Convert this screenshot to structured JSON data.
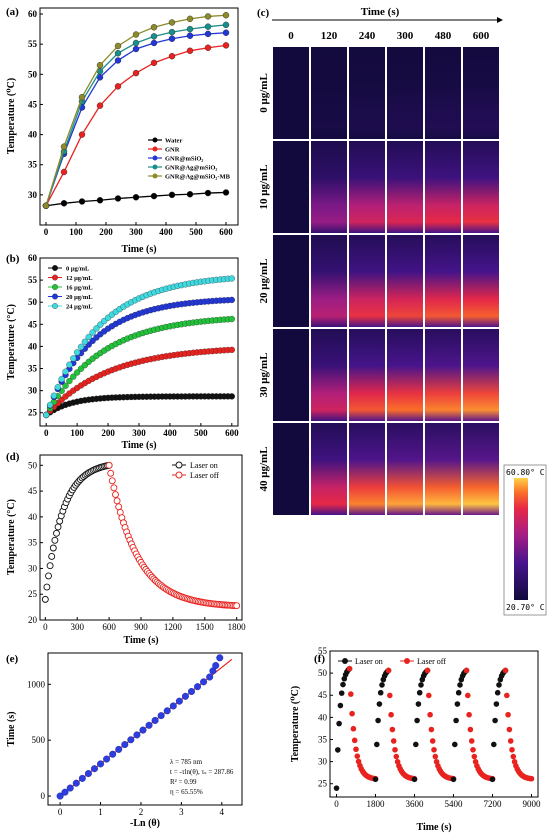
{
  "chart_data": [
    {
      "id": "a",
      "panel_label": "(a)",
      "type": "line",
      "xlabel": "Time (s)",
      "ylabel": "Temperature (⁰C)",
      "xlim": [
        -20,
        640
      ],
      "ylim": [
        25,
        61
      ],
      "xticks": [
        0,
        100,
        200,
        300,
        400,
        500,
        600
      ],
      "yticks": [
        30,
        35,
        40,
        45,
        50,
        55,
        60
      ],
      "legend_position": "middle-right",
      "x": [
        0,
        60,
        120,
        180,
        240,
        300,
        360,
        420,
        480,
        540,
        600
      ],
      "series": [
        {
          "name": "Water",
          "color": "#000000",
          "values": [
            28.2,
            28.6,
            28.9,
            29.1,
            29.4,
            29.6,
            29.8,
            30.0,
            30.1,
            30.3,
            30.4
          ]
        },
        {
          "name": "GNR",
          "color": "#e8231f",
          "values": [
            28.2,
            33.8,
            40.0,
            44.8,
            48.0,
            50.2,
            51.9,
            53.0,
            53.9,
            54.4,
            54.8
          ]
        },
        {
          "name": "GNR@mSiO₂",
          "color": "#2337d6",
          "values": [
            28.2,
            36.8,
            44.5,
            49.5,
            52.3,
            54.2,
            55.2,
            55.9,
            56.4,
            56.7,
            56.9
          ]
        },
        {
          "name": "GNR@Ag@mSiO₂",
          "color": "#1a8f8a",
          "values": [
            28.2,
            37.2,
            45.5,
            50.5,
            53.5,
            55.2,
            56.3,
            57.0,
            57.5,
            57.9,
            58.2
          ]
        },
        {
          "name": "GNR@Ag@mSiO₂-MB",
          "color": "#8c8a2a",
          "values": [
            28.2,
            38.0,
            46.2,
            51.5,
            54.7,
            56.6,
            57.8,
            58.6,
            59.2,
            59.6,
            59.8
          ]
        }
      ]
    },
    {
      "id": "b",
      "panel_label": "(b)",
      "type": "scatter",
      "xlabel": "Time (s)",
      "ylabel": "Temperature (°C)",
      "xlim": [
        -20,
        620
      ],
      "ylim": [
        22,
        60
      ],
      "xticks": [
        0,
        100,
        200,
        300,
        400,
        500,
        600
      ],
      "yticks": [
        25,
        30,
        35,
        40,
        45,
        50,
        55,
        60
      ],
      "legend_position": "top-left",
      "series": [
        {
          "name": "0 μg/mL",
          "color": "#111111",
          "final": 28.7,
          "tau": 80
        },
        {
          "name": "12 μg/mL",
          "color": "#e8231f",
          "final": 40.0,
          "tau": 200
        },
        {
          "name": "16 μg/mL",
          "color": "#23c23a",
          "final": 47.0,
          "tau": 180
        },
        {
          "name": "20 μg/mL",
          "color": "#2337d6",
          "final": 51.0,
          "tau": 150
        },
        {
          "name": "24 μg/mL",
          "color": "#3fd9df",
          "final": 56.3,
          "tau": 170
        }
      ],
      "start": 24.5
    },
    {
      "id": "d",
      "panel_label": "(d)",
      "type": "scatter",
      "xlabel": "Time (s)",
      "ylabel": "Temperature (°C)",
      "xlim": [
        -50,
        1850
      ],
      "ylim": [
        20,
        52
      ],
      "xticks": [
        0,
        300,
        600,
        900,
        1200,
        1500,
        1800
      ],
      "yticks": [
        20,
        25,
        30,
        35,
        40,
        45,
        50
      ],
      "legend_position": "top-right",
      "series": [
        {
          "name": "Laser on",
          "color": "#111111",
          "from": 0,
          "to": 600,
          "start": 24.0,
          "end": 50.0
        },
        {
          "name": "Laser off",
          "color": "#e8231f",
          "from": 600,
          "to": 1800,
          "start": 50.0,
          "end": 22.5
        }
      ]
    },
    {
      "id": "e",
      "panel_label": "(e)",
      "type": "scatter",
      "xlabel": "-Ln (θ)",
      "ylabel": "Time (s)",
      "xlim": [
        -0.3,
        4.5
      ],
      "ylim": [
        -80,
        1280
      ],
      "xticks": [
        0,
        1,
        2,
        3,
        4
      ],
      "yticks": [
        0,
        500,
        1000
      ],
      "annotations": [
        "λ = 785 nm",
        "t = -τln(θ), τₛ = 287.86",
        "R² = 0.99",
        "η = 65.55%"
      ],
      "fit_slope": 287.86,
      "points_x": [
        0.0,
        0.12,
        0.25,
        0.4,
        0.55,
        0.7,
        0.85,
        1.0,
        1.15,
        1.3,
        1.45,
        1.6,
        1.75,
        1.9,
        2.05,
        2.2,
        2.35,
        2.5,
        2.65,
        2.8,
        2.95,
        3.1,
        3.25,
        3.4,
        3.55,
        3.7,
        3.78,
        3.85,
        3.95
      ]
    },
    {
      "id": "f",
      "panel_label": "(f)",
      "type": "scatter",
      "xlabel": "Time (s)",
      "ylabel": "Temperature (⁰C)",
      "xlim": [
        -300,
        9300
      ],
      "ylim": [
        22,
        55
      ],
      "xticks": [
        0,
        1800,
        3600,
        5400,
        7200,
        9000
      ],
      "yticks": [
        25,
        30,
        35,
        40,
        45,
        50,
        55
      ],
      "legend_position": "top",
      "cycles": 5,
      "cycle_length": 1800,
      "series": [
        {
          "name": "Laser on",
          "color": "#111111"
        },
        {
          "name": "Laser off",
          "color": "#e8231f"
        }
      ]
    }
  ],
  "thermal": {
    "panel_label": "(c)",
    "header": "Time (s)",
    "times": [
      "0",
      "120",
      "240",
      "300",
      "480",
      "600"
    ],
    "concentrations": [
      "0 μg/mL",
      "10 μg/mL",
      "20 μg/mL",
      "30 μg/mL",
      "40 μg/mL"
    ],
    "intensity": [
      [
        0.0,
        0.03,
        0.05,
        0.06,
        0.07,
        0.08
      ],
      [
        0.0,
        0.45,
        0.62,
        0.66,
        0.7,
        0.72
      ],
      [
        0.0,
        0.55,
        0.72,
        0.76,
        0.8,
        0.82
      ],
      [
        0.0,
        0.62,
        0.8,
        0.85,
        0.88,
        0.9
      ],
      [
        0.0,
        0.7,
        0.88,
        0.93,
        0.96,
        0.98
      ]
    ],
    "colorbar_max": "60.80° C",
    "colorbar_min": "20.70° C"
  }
}
